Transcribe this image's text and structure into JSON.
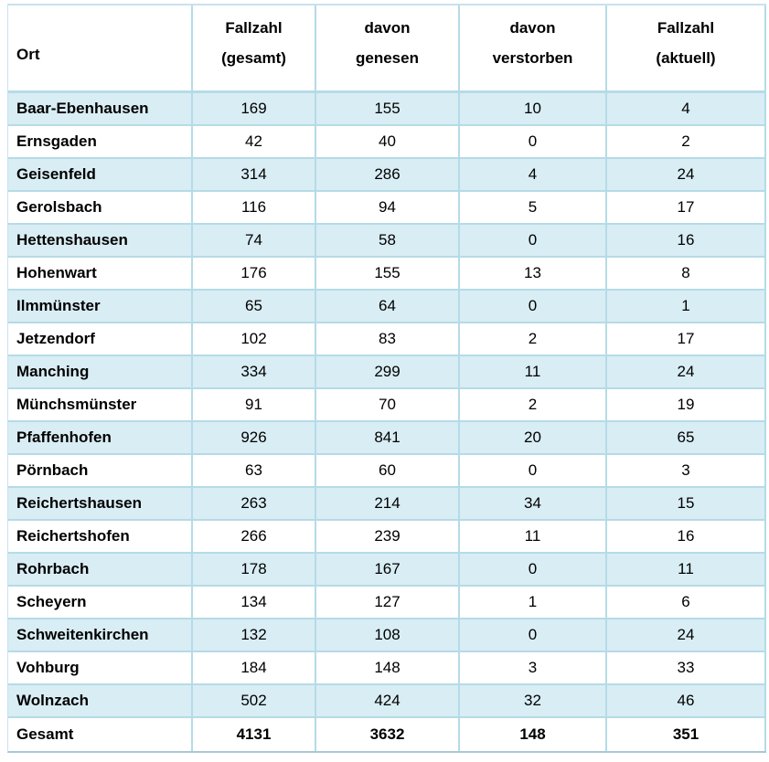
{
  "table": {
    "columns": [
      {
        "lines": [
          "Ort"
        ]
      },
      {
        "lines": [
          "Fallzahl",
          "(gesamt)"
        ]
      },
      {
        "lines": [
          "davon",
          "genesen"
        ]
      },
      {
        "lines": [
          "davon",
          "verstorben"
        ]
      },
      {
        "lines": [
          "Fallzahl",
          "(aktuell)"
        ]
      }
    ],
    "rows": [
      {
        "cells": [
          "Baar-Ebenhausen",
          "169",
          "155",
          "10",
          "4"
        ]
      },
      {
        "cells": [
          "Ernsgaden",
          "42",
          "40",
          "0",
          "2"
        ]
      },
      {
        "cells": [
          "Geisenfeld",
          "314",
          "286",
          "4",
          "24"
        ]
      },
      {
        "cells": [
          "Gerolsbach",
          "116",
          "94",
          "5",
          "17"
        ]
      },
      {
        "cells": [
          "Hettenshausen",
          "74",
          "58",
          "0",
          "16"
        ]
      },
      {
        "cells": [
          "Hohenwart",
          "176",
          "155",
          "13",
          "8"
        ]
      },
      {
        "cells": [
          "Ilmmünster",
          "65",
          "64",
          "0",
          "1"
        ]
      },
      {
        "cells": [
          "Jetzendorf",
          "102",
          "83",
          "2",
          "17"
        ]
      },
      {
        "cells": [
          "Manching",
          "334",
          "299",
          "11",
          "24"
        ]
      },
      {
        "cells": [
          "Münchsmünster",
          "91",
          "70",
          "2",
          "19"
        ]
      },
      {
        "cells": [
          "Pfaffenhofen",
          "926",
          "841",
          "20",
          "65"
        ]
      },
      {
        "cells": [
          "Pörnbach",
          "63",
          "60",
          "0",
          "3"
        ]
      },
      {
        "cells": [
          "Reichertshausen",
          "263",
          "214",
          "34",
          "15"
        ]
      },
      {
        "cells": [
          "Reichertshofen",
          "266",
          "239",
          "11",
          "16"
        ]
      },
      {
        "cells": [
          "Rohrbach",
          "178",
          "167",
          "0",
          "11"
        ]
      },
      {
        "cells": [
          "Scheyern",
          "134",
          "127",
          "1",
          "6"
        ]
      },
      {
        "cells": [
          "Schweitenkirchen",
          "132",
          "108",
          "0",
          "24"
        ]
      },
      {
        "cells": [
          "Vohburg",
          "184",
          "148",
          "3",
          "33"
        ]
      },
      {
        "cells": [
          "Wolnzach",
          "502",
          "424",
          "32",
          "46"
        ]
      }
    ],
    "total_row": {
      "cells": [
        "Gesamt",
        "4131",
        "3632",
        "148",
        "351"
      ]
    }
  },
  "chart_data": {
    "type": "table",
    "title": "",
    "columns": [
      "Ort",
      "Fallzahl (gesamt)",
      "davon genesen",
      "davon verstorben",
      "Fallzahl (aktuell)"
    ],
    "rows": [
      [
        "Baar-Ebenhausen",
        169,
        155,
        10,
        4
      ],
      [
        "Ernsgaden",
        42,
        40,
        0,
        2
      ],
      [
        "Geisenfeld",
        314,
        286,
        4,
        24
      ],
      [
        "Gerolsbach",
        116,
        94,
        5,
        17
      ],
      [
        "Hettenshausen",
        74,
        58,
        0,
        16
      ],
      [
        "Hohenwart",
        176,
        155,
        13,
        8
      ],
      [
        "Ilmmünster",
        65,
        64,
        0,
        1
      ],
      [
        "Jetzendorf",
        102,
        83,
        2,
        17
      ],
      [
        "Manching",
        334,
        299,
        11,
        24
      ],
      [
        "Münchsmünster",
        91,
        70,
        2,
        19
      ],
      [
        "Pfaffenhofen",
        926,
        841,
        20,
        65
      ],
      [
        "Pörnbach",
        63,
        60,
        0,
        3
      ],
      [
        "Reichertshausen",
        263,
        214,
        34,
        15
      ],
      [
        "Reichertshofen",
        266,
        239,
        11,
        16
      ],
      [
        "Rohrbach",
        178,
        167,
        0,
        11
      ],
      [
        "Scheyern",
        134,
        127,
        1,
        6
      ],
      [
        "Schweitenkirchen",
        132,
        108,
        0,
        24
      ],
      [
        "Vohburg",
        184,
        148,
        3,
        33
      ],
      [
        "Wolnzach",
        502,
        424,
        32,
        46
      ],
      [
        "Gesamt",
        4131,
        3632,
        148,
        351
      ]
    ],
    "layout": {
      "striped_rows": "odd rows pale blue",
      "total_row_bold": true,
      "grid": true
    }
  },
  "colors": {
    "row_stripe": "#d9edf4",
    "grid_border": "#b5dbe7",
    "outer_border": "#c9e2ec",
    "bottom_rule": "#aac7d5",
    "text": "#000000",
    "background": "#ffffff"
  }
}
